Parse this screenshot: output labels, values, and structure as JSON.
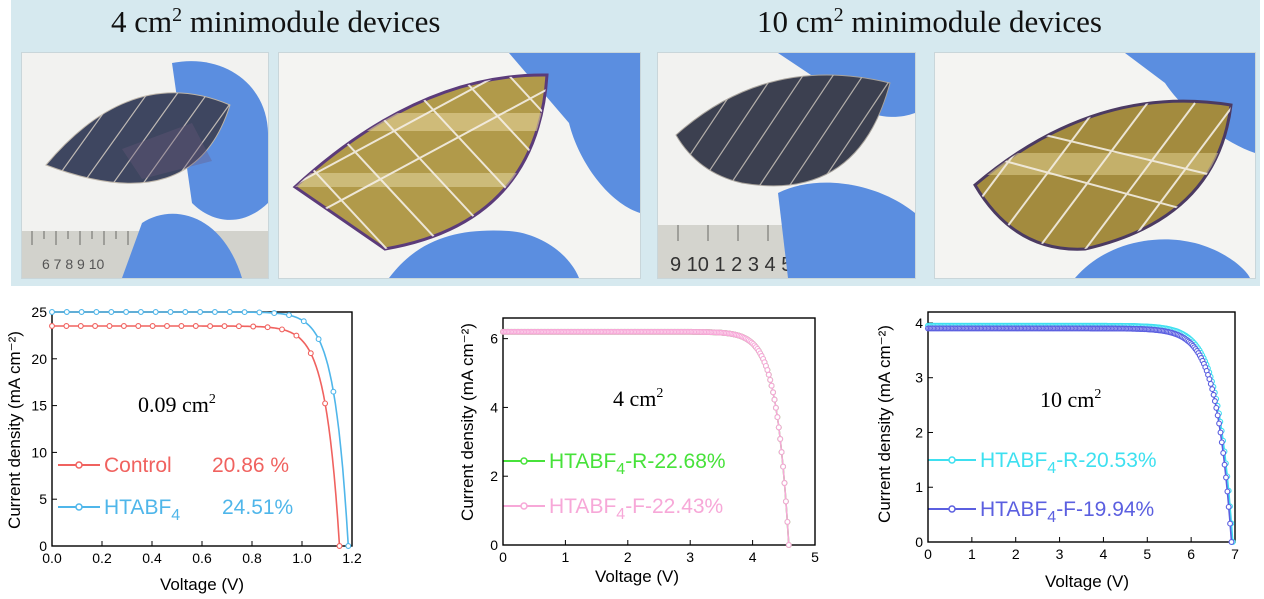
{
  "banner": {
    "left_title": {
      "prefix": "4 cm",
      "sup": "2",
      "suffix": " minimodule devices"
    },
    "right_title": {
      "prefix": "10 cm",
      "sup": "2",
      "suffix": " minimodule devices"
    },
    "ruler_small_digits": "6 7 8 9 10",
    "ruler_large_digits": "9 10 1 2 3 4 5",
    "colors": {
      "background": "#d6e9ef",
      "glove": "#5b8ee0",
      "cell_dark": "#3e4660",
      "cell_gold": "#b19a4a"
    }
  },
  "chart_data": [
    {
      "type": "line",
      "xlabel": "Voltage (V)",
      "ylabel": "Current density (mA cm⁻²)",
      "xlim": [
        0,
        1.2
      ],
      "ylim": [
        0,
        25
      ],
      "xticks": [
        "0.0",
        "0.2",
        "0.4",
        "0.6",
        "0.8",
        "1.0",
        "1.2"
      ],
      "yticks": [
        "0",
        "5",
        "10",
        "15",
        "20",
        "25"
      ],
      "annotation": {
        "main": "0.09 cm",
        "sup": "2"
      },
      "series": [
        {
          "name": "Control",
          "efficiency": "20.86 %",
          "color": "#f0625f",
          "jsc": 23.5,
          "voc": 1.15,
          "n": 0.055,
          "x": [
            0.0,
            0.2,
            0.4,
            0.6,
            0.8,
            0.9,
            0.95,
            1.0,
            1.05,
            1.1,
            1.15
          ],
          "y": [
            23.5,
            23.45,
            23.4,
            23.3,
            22.9,
            22.3,
            21.6,
            20.2,
            16.7,
            10.1,
            0.0
          ]
        },
        {
          "name": "HTABF4",
          "efficiency": "24.51%",
          "color": "#4fb6ea",
          "jsc": 25.0,
          "voc": 1.185,
          "n": 0.055,
          "x": [
            0.0,
            0.2,
            0.4,
            0.6,
            0.8,
            0.9,
            0.95,
            1.0,
            1.05,
            1.1,
            1.15,
            1.185
          ],
          "y": [
            25.0,
            24.95,
            24.9,
            24.8,
            24.6,
            24.2,
            23.8,
            22.9,
            20.8,
            16.4,
            8.3,
            0.0
          ]
        }
      ],
      "legend": [
        {
          "text": "Control",
          "value": "20.86 %",
          "color": "#f0625f"
        },
        {
          "text": "HTABF",
          "sub": "4",
          "value": "24.51%",
          "color": "#4fb6ea"
        }
      ]
    },
    {
      "type": "line",
      "xlabel": "Voltage (V)",
      "ylabel": "Current density (mA cm⁻²)",
      "xlim": [
        0,
        5
      ],
      "ylim": [
        0,
        6.6
      ],
      "xticks": [
        "0",
        "1",
        "2",
        "3",
        "4",
        "5"
      ],
      "yticks": [
        "0",
        "2",
        "4",
        "6"
      ],
      "annotation": {
        "main": "4 cm",
        "sup": "2"
      },
      "series": [
        {
          "name": "HTABF4-R-22.68%",
          "color": "#47e23a",
          "jsc": 6.2,
          "voc": 4.58,
          "n": 0.2,
          "x": [
            0.0,
            1.0,
            2.0,
            3.0,
            3.5,
            4.0,
            4.2,
            4.4,
            4.5,
            4.58
          ],
          "y": [
            6.2,
            6.18,
            6.15,
            6.1,
            6.0,
            5.6,
            4.9,
            3.3,
            1.9,
            0.0
          ]
        },
        {
          "name": "HTABF4-F-22.43%",
          "color": "#f7a8d8",
          "jsc": 6.2,
          "voc": 4.58,
          "n": 0.2,
          "x": [
            0.0,
            1.0,
            2.0,
            3.0,
            3.5,
            4.0,
            4.2,
            4.4,
            4.5,
            4.58
          ],
          "y": [
            6.2,
            6.17,
            6.14,
            6.09,
            5.98,
            5.55,
            4.85,
            3.25,
            1.85,
            0.0
          ]
        }
      ],
      "legend": [
        {
          "text": "HTABF",
          "sub": "4",
          "value": "-R-22.68%",
          "color": "#47e23a"
        },
        {
          "text": "HTABF",
          "sub": "4",
          "value": "-F-22.43%",
          "color": "#f7a8d8"
        }
      ]
    },
    {
      "type": "line",
      "xlabel": "Voltage (V)",
      "ylabel": "Current density (mA cm⁻²)",
      "xlim": [
        0,
        7
      ],
      "ylim": [
        0,
        4.2
      ],
      "xticks": [
        "0",
        "1",
        "2",
        "3",
        "4",
        "5",
        "6",
        "7"
      ],
      "yticks": [
        "0",
        "1",
        "2",
        "3",
        "4"
      ],
      "annotation": {
        "main": "10 cm",
        "sup": "2"
      },
      "series": [
        {
          "name": "HTABF4-R-20.53%",
          "color": "#3ee0f0",
          "jsc": 3.95,
          "voc": 6.95,
          "n": 0.35,
          "x": [
            0.0,
            1.0,
            2.0,
            3.0,
            4.0,
            5.0,
            5.5,
            6.0,
            6.5,
            6.8,
            6.95
          ],
          "y": [
            3.95,
            3.93,
            3.9,
            3.86,
            3.8,
            3.7,
            3.6,
            3.35,
            2.5,
            1.3,
            0.0
          ]
        },
        {
          "name": "HTABF4-F-19.94%",
          "color": "#5b5fe0",
          "jsc": 3.9,
          "voc": 6.92,
          "n": 0.35,
          "x": [
            0.0,
            1.0,
            2.0,
            3.0,
            4.0,
            5.0,
            5.5,
            6.0,
            6.5,
            6.8,
            6.92
          ],
          "y": [
            3.9,
            3.86,
            3.82,
            3.77,
            3.71,
            3.6,
            3.5,
            3.25,
            2.4,
            1.2,
            0.0
          ]
        }
      ],
      "legend": [
        {
          "text": "HTABF",
          "sub": "4",
          "value": "-R-20.53%",
          "color": "#3ee0f0"
        },
        {
          "text": "HTABF",
          "sub": "4",
          "value": "-F-19.94%",
          "color": "#5b5fe0"
        }
      ]
    }
  ]
}
